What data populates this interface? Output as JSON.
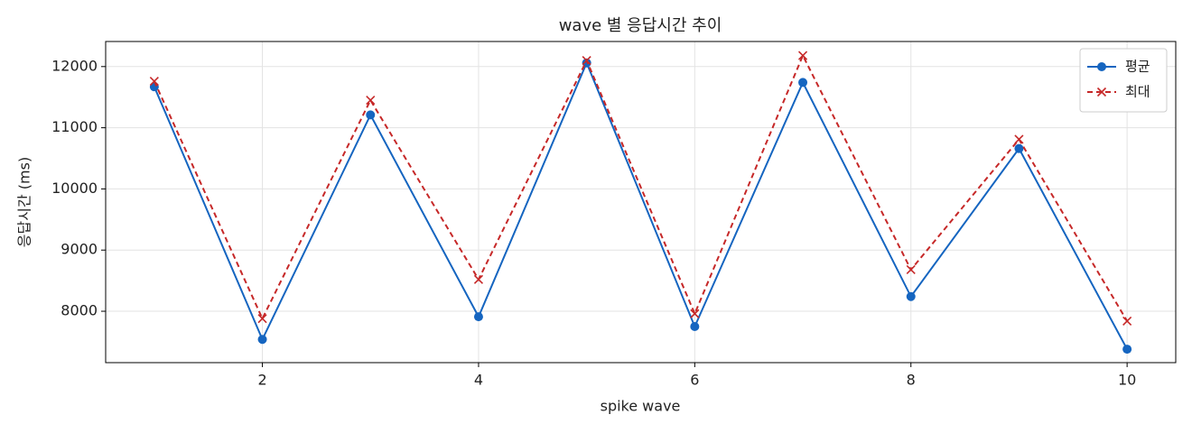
{
  "chart_data": {
    "type": "line",
    "title": "wave 별 응답시간 추이",
    "xlabel": "spike wave",
    "ylabel": "응답시간 (ms)",
    "x": [
      1,
      2,
      3,
      4,
      5,
      6,
      7,
      8,
      9,
      10
    ],
    "series": [
      {
        "name": "평균",
        "color": "#1565c0",
        "marker": "o",
        "dashed": false,
        "values": [
          11670,
          7540,
          11210,
          7910,
          12060,
          7750,
          11740,
          8240,
          10660,
          7380
        ]
      },
      {
        "name": "최대",
        "color": "#c62828",
        "marker": "x",
        "dashed": true,
        "values": [
          11760,
          7880,
          11450,
          8520,
          12100,
          7960,
          12180,
          8680,
          10810,
          7840
        ]
      }
    ],
    "xlim": [
      0.55,
      10.45
    ],
    "xticks": [
      2,
      4,
      6,
      8,
      10
    ],
    "ylim": [
      7160,
      12410
    ],
    "yticks": [
      8000,
      9000,
      10000,
      11000,
      12000
    ],
    "grid": true,
    "legend": "upper right"
  }
}
